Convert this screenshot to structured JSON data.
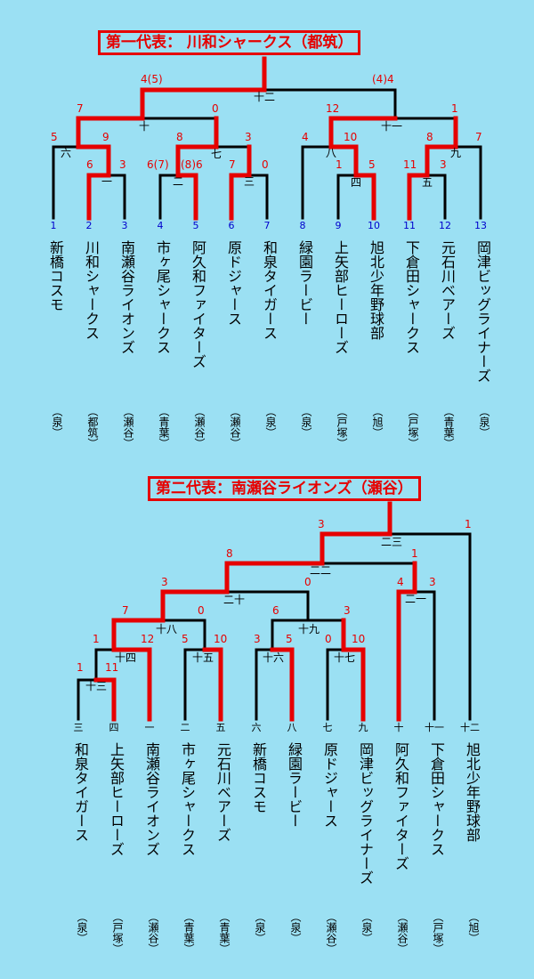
{
  "bracket1": {
    "title": "第一代表： 川和シャークス（都筑）",
    "teams": [
      {
        "no": "1",
        "name": "新橋コスモ",
        "area": "（泉）"
      },
      {
        "no": "2",
        "name": "川和シャークス",
        "area": "（都筑）"
      },
      {
        "no": "3",
        "name": "南瀬谷ライオンズ",
        "area": "（瀬谷）"
      },
      {
        "no": "4",
        "name": "市ヶ尾シャークス",
        "area": "（青葉）"
      },
      {
        "no": "5",
        "name": "阿久和ファイターズ",
        "area": "（瀬谷）"
      },
      {
        "no": "6",
        "name": "原ドジャース",
        "area": "（瀬谷）"
      },
      {
        "no": "7",
        "name": "和泉タイガース",
        "area": "（泉）"
      },
      {
        "no": "8",
        "name": "緑園ラービー",
        "area": "（泉）"
      },
      {
        "no": "9",
        "name": "上矢部ヒーローズ",
        "area": "（戸塚）"
      },
      {
        "no": "10",
        "name": "旭北少年野球部",
        "area": "（旭）"
      },
      {
        "no": "11",
        "name": "下倉田シャークス",
        "area": "（戸塚）"
      },
      {
        "no": "12",
        "name": "元石川ベアーズ",
        "area": "（青葉）"
      },
      {
        "no": "13",
        "name": "岡津ビッグライナーズ",
        "area": "（泉）"
      }
    ],
    "game_labels": [
      "一",
      "二",
      "三",
      "四",
      "五",
      "六",
      "七",
      "八",
      "九",
      "十",
      "十一",
      "十二"
    ],
    "scores": [
      "6",
      "3",
      "6(7)",
      "(8)6",
      "7",
      "0",
      "1",
      "5",
      "11",
      "3",
      "5",
      "9",
      "8",
      "3",
      "4",
      "10",
      "8",
      "7",
      "7",
      "0",
      "12",
      "1",
      "4(5)",
      "(4)4"
    ]
  },
  "bracket2": {
    "title": "第二代表：南瀬谷ライオンズ（瀬谷）",
    "teams": [
      {
        "no": "三",
        "name": "和泉タイガース",
        "area": "（泉）"
      },
      {
        "no": "四",
        "name": "上矢部ヒーローズ",
        "area": "（戸塚）"
      },
      {
        "no": "一",
        "name": "南瀬谷ライオンズ",
        "area": "（瀬谷）"
      },
      {
        "no": "二",
        "name": "市ヶ尾シャークス",
        "area": "（青葉）"
      },
      {
        "no": "五",
        "name": "元石川ベアーズ",
        "area": "（青葉）"
      },
      {
        "no": "六",
        "name": "新橋コスモ",
        "area": "（泉）"
      },
      {
        "no": "八",
        "name": "緑園ラービー",
        "area": "（泉）"
      },
      {
        "no": "七",
        "name": "原ドジャース",
        "area": "（瀬谷）"
      },
      {
        "no": "九",
        "name": "岡津ビッグライナーズ",
        "area": "（泉）"
      },
      {
        "no": "十",
        "name": "阿久和ファイターズ",
        "area": "（瀬谷）"
      },
      {
        "no": "十一",
        "name": "下倉田シャークス",
        "area": "（戸塚）"
      },
      {
        "no": "十二",
        "name": "旭北少年野球部",
        "area": "（旭）"
      }
    ],
    "game_labels": [
      "十三",
      "十四",
      "十五",
      "十六",
      "十七",
      "十八",
      "十九",
      "二十",
      "二一",
      "二二",
      "二三"
    ],
    "scores": [
      "1",
      "11",
      "1",
      "12",
      "5",
      "10",
      "3",
      "5",
      "0",
      "10",
      "7",
      "0",
      "6",
      "3",
      "3",
      "0",
      "4",
      "3",
      "8",
      "1",
      "3",
      "1"
    ]
  },
  "colors": {
    "background": "#9be0f3",
    "winner_line": "#e60000",
    "line": "#000000",
    "team_number": "#0000cc"
  }
}
